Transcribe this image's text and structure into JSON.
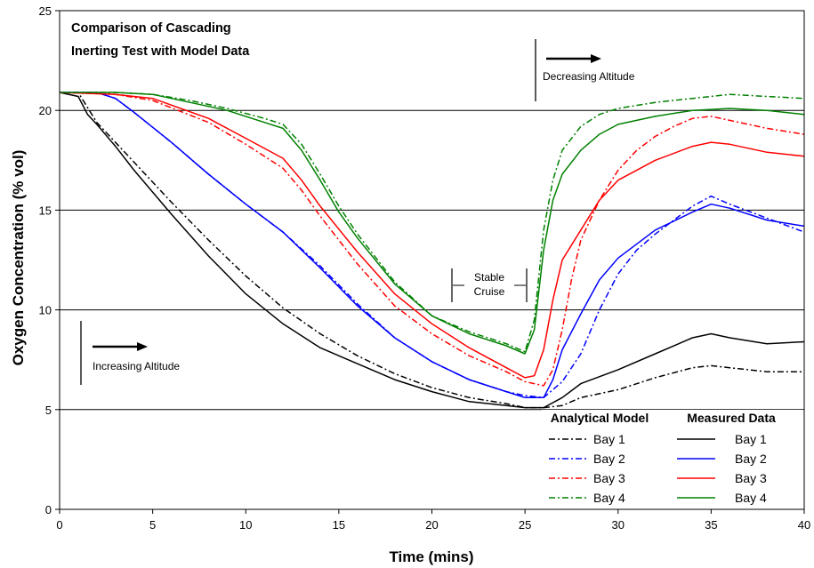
{
  "chart_data": {
    "type": "line",
    "title_lines": [
      "Comparison of Cascading",
      "Inerting Test with Model Data"
    ],
    "xlabel": "Time (mins)",
    "ylabel": "Oxygen Concentration (% vol)",
    "xlim": [
      0,
      40
    ],
    "ylim": [
      0,
      25
    ],
    "xticks": [
      0,
      5,
      10,
      15,
      20,
      25,
      30,
      35,
      40
    ],
    "yticks": [
      0,
      5,
      10,
      15,
      20,
      25
    ],
    "grid": "horizontal",
    "annotations": {
      "increasing_altitude": "Increasing Altitude",
      "decreasing_altitude": "Decreasing Altitude",
      "stable_line1": "Stable",
      "stable_line2": "Cruise"
    },
    "legend": {
      "placement": "bottom-right",
      "model_header": "Analytical Model",
      "measured_header": "Measured Data",
      "labels": [
        "Bay 1",
        "Bay 2",
        "Bay 3",
        "Bay 4"
      ]
    },
    "colors": {
      "bay1": "#000000",
      "bay2": "#0000ff",
      "bay3": "#ff0000",
      "bay4": "#008000"
    },
    "series": [
      {
        "name": "Bay 1",
        "group": "Analytical Model",
        "style": "dashdot",
        "color": "#000000",
        "points": [
          [
            0,
            20.9
          ],
          [
            1,
            20.9
          ],
          [
            2,
            19.4
          ],
          [
            4,
            17.4
          ],
          [
            6,
            15.4
          ],
          [
            8,
            13.5
          ],
          [
            10,
            11.7
          ],
          [
            12,
            10.1
          ],
          [
            14,
            8.8
          ],
          [
            16,
            7.7
          ],
          [
            18,
            6.8
          ],
          [
            20,
            6.1
          ],
          [
            22,
            5.6
          ],
          [
            24,
            5.3
          ],
          [
            25,
            5.1
          ],
          [
            26,
            5.1
          ],
          [
            27,
            5.2
          ],
          [
            28,
            5.6
          ],
          [
            30,
            6.0
          ],
          [
            32,
            6.6
          ],
          [
            34,
            7.1
          ],
          [
            35,
            7.2
          ],
          [
            36,
            7.1
          ],
          [
            38,
            6.9
          ],
          [
            40,
            6.9
          ]
        ]
      },
      {
        "name": "Bay 2",
        "group": "Analytical Model",
        "style": "dashdot",
        "color": "#0000ff",
        "points": [
          [
            0,
            20.9
          ],
          [
            2,
            20.9
          ],
          [
            3,
            20.6
          ],
          [
            4,
            19.9
          ],
          [
            6,
            18.4
          ],
          [
            8,
            16.8
          ],
          [
            10,
            15.3
          ],
          [
            12,
            13.9
          ],
          [
            14,
            12.2
          ],
          [
            16,
            10.3
          ],
          [
            18,
            8.6
          ],
          [
            20,
            7.4
          ],
          [
            22,
            6.5
          ],
          [
            24,
            5.9
          ],
          [
            25,
            5.7
          ],
          [
            26,
            5.6
          ],
          [
            27,
            6.4
          ],
          [
            28,
            7.8
          ],
          [
            29,
            10.0
          ],
          [
            30,
            11.8
          ],
          [
            31,
            13.0
          ],
          [
            32,
            13.8
          ],
          [
            33,
            14.5
          ],
          [
            34,
            15.2
          ],
          [
            35,
            15.7
          ],
          [
            36,
            15.3
          ],
          [
            38,
            14.6
          ],
          [
            40,
            13.9
          ]
        ]
      },
      {
        "name": "Bay 3",
        "group": "Analytical Model",
        "style": "dashdot",
        "color": "#ff0000",
        "points": [
          [
            0,
            20.9
          ],
          [
            3,
            20.8
          ],
          [
            5,
            20.5
          ],
          [
            8,
            19.4
          ],
          [
            10,
            18.3
          ],
          [
            12,
            17.1
          ],
          [
            13,
            16.0
          ],
          [
            14,
            14.7
          ],
          [
            16,
            12.3
          ],
          [
            18,
            10.2
          ],
          [
            20,
            8.8
          ],
          [
            22,
            7.7
          ],
          [
            24,
            6.9
          ],
          [
            25,
            6.4
          ],
          [
            26,
            6.2
          ],
          [
            26.5,
            7.0
          ],
          [
            27,
            9.0
          ],
          [
            27.5,
            11.5
          ],
          [
            28,
            13.5
          ],
          [
            29,
            15.5
          ],
          [
            30,
            17.0
          ],
          [
            31,
            18.0
          ],
          [
            32,
            18.7
          ],
          [
            33,
            19.2
          ],
          [
            34,
            19.6
          ],
          [
            35,
            19.7
          ],
          [
            36,
            19.5
          ],
          [
            38,
            19.1
          ],
          [
            40,
            18.8
          ]
        ]
      },
      {
        "name": "Bay 4",
        "group": "Analytical Model",
        "style": "dashdot",
        "color": "#008000",
        "points": [
          [
            0,
            20.9
          ],
          [
            3,
            20.9
          ],
          [
            5,
            20.8
          ],
          [
            7,
            20.5
          ],
          [
            9,
            20.1
          ],
          [
            11,
            19.6
          ],
          [
            12,
            19.3
          ],
          [
            13,
            18.3
          ],
          [
            14,
            16.8
          ],
          [
            15,
            15.2
          ],
          [
            16,
            13.8
          ],
          [
            18,
            11.4
          ],
          [
            20,
            9.7
          ],
          [
            22,
            8.9
          ],
          [
            24,
            8.3
          ],
          [
            25,
            7.9
          ],
          [
            25.5,
            9.5
          ],
          [
            26,
            14.0
          ],
          [
            26.5,
            16.5
          ],
          [
            27,
            18.0
          ],
          [
            28,
            19.2
          ],
          [
            29,
            19.8
          ],
          [
            30,
            20.1
          ],
          [
            32,
            20.4
          ],
          [
            34,
            20.6
          ],
          [
            36,
            20.8
          ],
          [
            38,
            20.7
          ],
          [
            40,
            20.6
          ]
        ]
      },
      {
        "name": "Bay 1",
        "group": "Measured Data",
        "style": "solid",
        "color": "#000000",
        "points": [
          [
            0,
            20.9
          ],
          [
            1,
            20.7
          ],
          [
            1.5,
            19.8
          ],
          [
            2,
            19.3
          ],
          [
            3,
            18.2
          ],
          [
            4,
            17.0
          ],
          [
            6,
            14.8
          ],
          [
            8,
            12.7
          ],
          [
            10,
            10.8
          ],
          [
            12,
            9.3
          ],
          [
            14,
            8.1
          ],
          [
            16,
            7.3
          ],
          [
            18,
            6.5
          ],
          [
            20,
            5.9
          ],
          [
            22,
            5.4
          ],
          [
            24,
            5.2
          ],
          [
            25,
            5.1
          ],
          [
            26,
            5.1
          ],
          [
            27,
            5.6
          ],
          [
            28,
            6.3
          ],
          [
            30,
            7.0
          ],
          [
            32,
            7.8
          ],
          [
            34,
            8.6
          ],
          [
            35,
            8.8
          ],
          [
            36,
            8.6
          ],
          [
            38,
            8.3
          ],
          [
            40,
            8.4
          ]
        ]
      },
      {
        "name": "Bay 2",
        "group": "Measured Data",
        "style": "solid",
        "color": "#0000ff",
        "points": [
          [
            0,
            20.9
          ],
          [
            2,
            20.9
          ],
          [
            3,
            20.6
          ],
          [
            4,
            19.9
          ],
          [
            6,
            18.4
          ],
          [
            8,
            16.8
          ],
          [
            10,
            15.3
          ],
          [
            12,
            13.9
          ],
          [
            14,
            12.1
          ],
          [
            16,
            10.2
          ],
          [
            18,
            8.6
          ],
          [
            20,
            7.4
          ],
          [
            22,
            6.5
          ],
          [
            24,
            5.9
          ],
          [
            25,
            5.6
          ],
          [
            26,
            5.6
          ],
          [
            26.5,
            6.5
          ],
          [
            27,
            8.0
          ],
          [
            28,
            9.8
          ],
          [
            29,
            11.5
          ],
          [
            30,
            12.6
          ],
          [
            32,
            14.0
          ],
          [
            34,
            14.9
          ],
          [
            35,
            15.3
          ],
          [
            36,
            15.1
          ],
          [
            38,
            14.5
          ],
          [
            40,
            14.2
          ]
        ]
      },
      {
        "name": "Bay 3",
        "group": "Measured Data",
        "style": "solid",
        "color": "#ff0000",
        "points": [
          [
            0,
            20.9
          ],
          [
            3,
            20.8
          ],
          [
            5,
            20.6
          ],
          [
            8,
            19.6
          ],
          [
            10,
            18.6
          ],
          [
            12,
            17.6
          ],
          [
            13,
            16.5
          ],
          [
            14,
            15.2
          ],
          [
            16,
            12.9
          ],
          [
            18,
            10.8
          ],
          [
            20,
            9.3
          ],
          [
            22,
            8.1
          ],
          [
            24,
            7.1
          ],
          [
            25,
            6.6
          ],
          [
            25.5,
            6.7
          ],
          [
            26,
            8.0
          ],
          [
            26.5,
            10.5
          ],
          [
            27,
            12.5
          ],
          [
            28,
            14.0
          ],
          [
            29,
            15.5
          ],
          [
            30,
            16.5
          ],
          [
            32,
            17.5
          ],
          [
            34,
            18.2
          ],
          [
            35,
            18.4
          ],
          [
            36,
            18.3
          ],
          [
            38,
            17.9
          ],
          [
            40,
            17.7
          ]
        ]
      },
      {
        "name": "Bay 4",
        "group": "Measured Data",
        "style": "solid",
        "color": "#008000",
        "points": [
          [
            0,
            20.9
          ],
          [
            3,
            20.9
          ],
          [
            5,
            20.8
          ],
          [
            7,
            20.4
          ],
          [
            9,
            20.0
          ],
          [
            11,
            19.4
          ],
          [
            12,
            19.1
          ],
          [
            13,
            18.0
          ],
          [
            14,
            16.5
          ],
          [
            15,
            14.9
          ],
          [
            16,
            13.6
          ],
          [
            18,
            11.3
          ],
          [
            20,
            9.7
          ],
          [
            22,
            8.8
          ],
          [
            24,
            8.2
          ],
          [
            25,
            7.8
          ],
          [
            25.5,
            9.0
          ],
          [
            26,
            13.0
          ],
          [
            26.5,
            15.5
          ],
          [
            27,
            16.8
          ],
          [
            28,
            18.0
          ],
          [
            29,
            18.8
          ],
          [
            30,
            19.3
          ],
          [
            32,
            19.7
          ],
          [
            34,
            20.0
          ],
          [
            36,
            20.1
          ],
          [
            38,
            20.0
          ],
          [
            40,
            19.8
          ]
        ]
      }
    ]
  }
}
